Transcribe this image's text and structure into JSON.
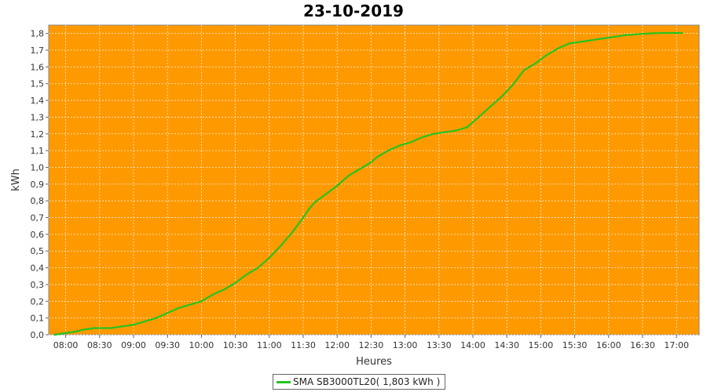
{
  "chart_data": {
    "type": "line",
    "title": "23-10-2019",
    "xlabel": "Heures",
    "ylabel": "kWh",
    "ylim": [
      0,
      1.85
    ],
    "xlim": [
      "07:45",
      "17:20"
    ],
    "yticks": [
      "0,0",
      "0,1",
      "0,2",
      "0,3",
      "0,4",
      "0,5",
      "0,6",
      "0,7",
      "0,8",
      "0,9",
      "1,0",
      "1,1",
      "1,2",
      "1,3",
      "1,4",
      "1,5",
      "1,6",
      "1,7",
      "1,8"
    ],
    "xticks": [
      "08:00",
      "08:30",
      "09:00",
      "09:30",
      "10:00",
      "10:30",
      "11:00",
      "11:30",
      "12:00",
      "12:30",
      "13:00",
      "13:30",
      "14:00",
      "14:30",
      "15:00",
      "15:30",
      "16:00",
      "16:30",
      "17:00"
    ],
    "grid": true,
    "background_color": "#ff9900",
    "line_color": "#22c41e",
    "legend": {
      "label": "SMA SB3000TL20( 1,803 kWh )",
      "position": "bottom"
    },
    "series": [
      {
        "name": "SMA SB3000TL20",
        "x": [
          "07:50",
          "08:00",
          "08:10",
          "08:15",
          "08:25",
          "08:40",
          "08:50",
          "09:00",
          "09:10",
          "09:20",
          "09:30",
          "09:40",
          "09:50",
          "10:00",
          "10:10",
          "10:20",
          "10:30",
          "10:40",
          "10:50",
          "11:00",
          "11:10",
          "11:20",
          "11:30",
          "11:35",
          "11:40",
          "11:50",
          "12:00",
          "12:10",
          "12:20",
          "12:30",
          "12:35",
          "12:45",
          "12:55",
          "13:05",
          "13:15",
          "13:25",
          "13:35",
          "13:45",
          "13:55",
          "14:05",
          "14:15",
          "14:25",
          "14:35",
          "14:45",
          "14:55",
          "15:05",
          "15:15",
          "15:25",
          "15:35",
          "15:45",
          "15:55",
          "16:05",
          "16:15",
          "16:25",
          "16:35",
          "16:45",
          "16:55",
          "17:05"
        ],
        "y": [
          0.0,
          0.01,
          0.02,
          0.03,
          0.04,
          0.04,
          0.05,
          0.06,
          0.08,
          0.1,
          0.13,
          0.16,
          0.18,
          0.2,
          0.24,
          0.27,
          0.31,
          0.36,
          0.4,
          0.46,
          0.53,
          0.61,
          0.7,
          0.75,
          0.79,
          0.84,
          0.89,
          0.95,
          0.99,
          1.03,
          1.06,
          1.1,
          1.13,
          1.15,
          1.18,
          1.2,
          1.21,
          1.22,
          1.24,
          1.3,
          1.36,
          1.42,
          1.49,
          1.58,
          1.62,
          1.67,
          1.71,
          1.74,
          1.75,
          1.76,
          1.77,
          1.78,
          1.79,
          1.795,
          1.8,
          1.802,
          1.803,
          1.803
        ]
      }
    ]
  }
}
